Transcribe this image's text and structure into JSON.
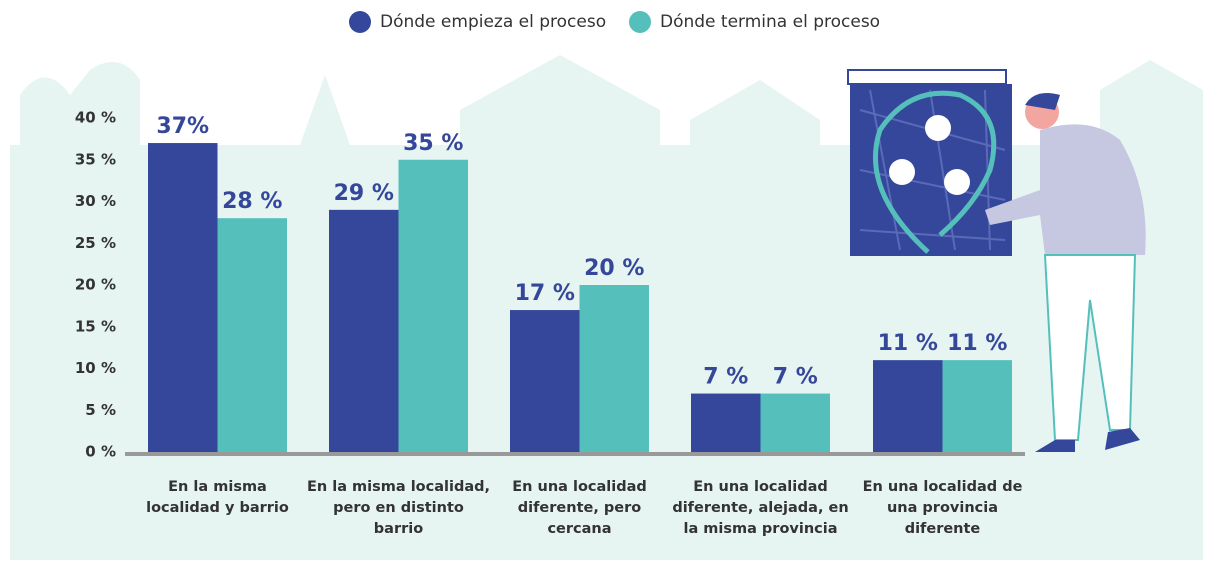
{
  "chart_data": {
    "type": "bar",
    "categories": [
      "En la misma\nlocalidad y barrio",
      "En la misma localidad,\npero en distinto\nbarrio",
      "En una localidad\ndiferente, pero\ncercana",
      "En una localidad\ndiferente, alejada, en\nla misma provincia",
      "En una localidad de\nuna provincia\ndiferente"
    ],
    "series": [
      {
        "name": "Dónde empieza el proceso",
        "color": "#35479a",
        "values": [
          37,
          29,
          17,
          7,
          11
        ],
        "value_labels": [
          "37%",
          "29 %",
          "17 %",
          "7 %",
          "11 %"
        ]
      },
      {
        "name": "Dónde termina el proceso",
        "color": "#55bfbb",
        "values": [
          28,
          35,
          20,
          7,
          11
        ],
        "value_labels": [
          "28 %",
          "35 %",
          "20 %",
          "7 %",
          "11 %"
        ]
      }
    ],
    "ylim": [
      0,
      40
    ],
    "yticks": [
      {
        "value": 0,
        "label": "0 %"
      },
      {
        "value": 5,
        "label": "5 %"
      },
      {
        "value": 10,
        "label": "10 %"
      },
      {
        "value": 15,
        "label": "15 %"
      },
      {
        "value": 20,
        "label": "20 %"
      },
      {
        "value": 25,
        "label": "25 %"
      },
      {
        "value": 30,
        "label": "30 %"
      },
      {
        "value": 35,
        "label": "35 %"
      },
      {
        "value": 40,
        "label": "40 %"
      }
    ],
    "legend": "top"
  }
}
